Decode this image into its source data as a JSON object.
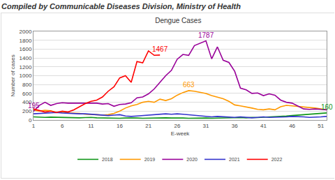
{
  "header": "Compiled by Communicable Diseases Division, Ministry of Health",
  "chart_data": {
    "type": "line",
    "title": "Dengue Cases",
    "x_label": "E-week",
    "y_label": "Number of cases",
    "x": [
      1,
      2,
      3,
      4,
      5,
      6,
      7,
      8,
      9,
      10,
      11,
      12,
      13,
      14,
      15,
      16,
      17,
      18,
      19,
      20,
      21,
      22,
      23,
      24,
      25,
      26,
      27,
      28,
      29,
      30,
      31,
      32,
      33,
      34,
      35,
      36,
      37,
      38,
      39,
      40,
      41,
      42,
      43,
      44,
      45,
      46,
      47,
      48,
      49,
      50,
      51,
      52
    ],
    "series": [
      {
        "name": "2018",
        "color": "#109618",
        "values": [
          70,
          60,
          60,
          65,
          60,
          55,
          60,
          55,
          50,
          55,
          60,
          50,
          45,
          50,
          45,
          40,
          45,
          50,
          45,
          40,
          45,
          50,
          55,
          50,
          45,
          50,
          45,
          40,
          45,
          50,
          45,
          40,
          45,
          50,
          45,
          50,
          55,
          50,
          60,
          55,
          60,
          65,
          70,
          80,
          90,
          100,
          110,
          120,
          130,
          140,
          150,
          160
        ]
      },
      {
        "name": "2019",
        "color": "#ff9900",
        "values": [
          220,
          200,
          220,
          210,
          170,
          180,
          160,
          160,
          150,
          130,
          130,
          120,
          110,
          120,
          150,
          200,
          270,
          320,
          350,
          400,
          420,
          400,
          470,
          440,
          480,
          560,
          620,
          663,
          650,
          620,
          600,
          550,
          520,
          480,
          420,
          340,
          320,
          300,
          270,
          240,
          230,
          250,
          230,
          300,
          330,
          320,
          310,
          290,
          280,
          270,
          250,
          230
        ]
      },
      {
        "name": "2020",
        "color": "#990099",
        "values": [
          195,
          330,
          400,
          330,
          370,
          390,
          380,
          380,
          370,
          380,
          370,
          380,
          360,
          370,
          310,
          350,
          360,
          390,
          500,
          520,
          590,
          700,
          850,
          1000,
          1120,
          1370,
          1480,
          1460,
          1680,
          1730,
          1787,
          1380,
          1650,
          1350,
          1300,
          1100,
          720,
          680,
          600,
          610,
          550,
          590,
          560,
          450,
          400,
          380,
          320,
          250,
          240,
          250,
          240,
          230
        ]
      },
      {
        "name": "2021",
        "color": "#3333cc",
        "values": [
          140,
          150,
          160,
          160,
          170,
          160,
          150,
          150,
          140,
          140,
          130,
          120,
          110,
          100,
          110,
          120,
          90,
          80,
          90,
          100,
          110,
          120,
          130,
          140,
          130,
          140,
          130,
          120,
          110,
          90,
          80,
          70,
          80,
          70,
          60,
          60,
          70,
          60,
          50,
          60,
          70,
          60,
          60,
          70,
          70,
          80,
          80,
          70,
          60,
          60,
          70,
          80
        ]
      },
      {
        "name": "2022",
        "color": "#ff0000",
        "values": [
          250,
          220,
          180,
          200,
          170,
          200,
          180,
          230,
          300,
          370,
          420,
          450,
          520,
          650,
          750,
          950,
          1000,
          850,
          1320,
          1290,
          1560,
          1460,
          1467,
          null,
          null,
          null,
          null,
          null,
          null,
          null,
          null,
          null,
          null,
          null,
          null,
          null,
          null,
          null,
          null,
          null,
          null,
          null,
          null,
          null,
          null,
          null,
          null,
          null,
          null,
          null,
          null,
          null
        ]
      }
    ],
    "annotations": [
      {
        "text": "195",
        "x": 1,
        "y": 195,
        "color": "#990099"
      },
      {
        "text": "1467",
        "x": 23,
        "y": 1467,
        "color": "#ff0000"
      },
      {
        "text": "1787",
        "x": 31,
        "y": 1787,
        "color": "#990099"
      },
      {
        "text": "663",
        "x": 28,
        "y": 663,
        "color": "#ff9900"
      },
      {
        "text": "160",
        "x": 52,
        "y": 160,
        "color": "#109618"
      }
    ],
    "xlim": [
      1,
      52
    ],
    "xticks": [
      1,
      6,
      11,
      16,
      21,
      26,
      31,
      36,
      41,
      46,
      51
    ],
    "ylim": [
      0,
      2000
    ],
    "yticks": [
      0,
      200,
      400,
      600,
      800,
      1000,
      1200,
      1400,
      1600,
      1800,
      2000
    ],
    "grid": true,
    "legend": "bottom"
  }
}
